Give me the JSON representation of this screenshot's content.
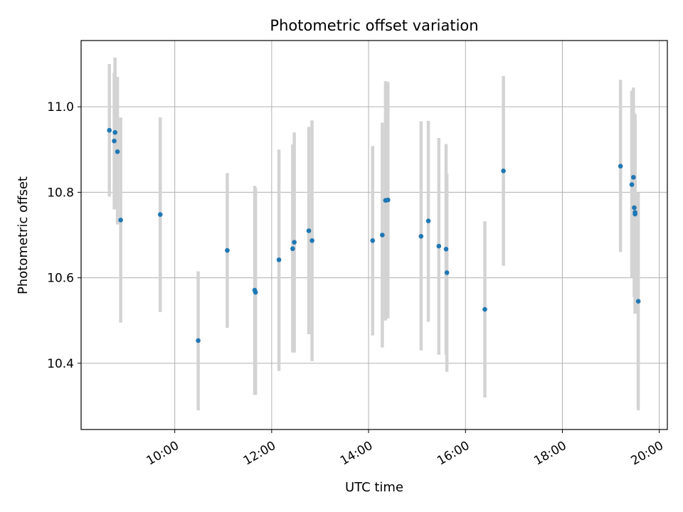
{
  "chart_data": {
    "type": "scatter",
    "title": "Photometric offset variation",
    "xlabel": "UTC time",
    "ylabel": "Photometric offset",
    "x_axis_type": "time",
    "xlim": [
      "08:04",
      "20:10"
    ],
    "ylim": [
      10.245,
      11.155
    ],
    "x_ticks": [
      "10:00",
      "12:00",
      "14:00",
      "16:00",
      "18:00",
      "20:00"
    ],
    "y_ticks": [
      10.4,
      10.6,
      10.8,
      11.0
    ],
    "y_tick_labels": [
      "10.4",
      "10.6",
      "10.8",
      "11.0"
    ],
    "grid": true,
    "series": [
      {
        "marker_color": "#1f77b4",
        "errorbar_color": "#d3d3d3",
        "points": [
          {
            "x": "08:39",
            "y": 10.945,
            "err_low": 10.79,
            "err_high": 11.1
          },
          {
            "x": "08:45",
            "y": 10.92,
            "err_low": 10.76,
            "err_high": 11.08
          },
          {
            "x": "08:46",
            "y": 10.94,
            "err_low": 10.76,
            "err_high": 11.115
          },
          {
            "x": "08:49",
            "y": 10.895,
            "err_low": 10.725,
            "err_high": 11.07
          },
          {
            "x": "08:53",
            "y": 10.735,
            "err_low": 10.495,
            "err_high": 10.975
          },
          {
            "x": "09:42",
            "y": 10.748,
            "err_low": 10.52,
            "err_high": 10.975
          },
          {
            "x": "10:29",
            "y": 10.453,
            "err_low": 10.29,
            "err_high": 10.615
          },
          {
            "x": "11:05",
            "y": 10.664,
            "err_low": 10.483,
            "err_high": 10.845
          },
          {
            "x": "11:39",
            "y": 10.571,
            "err_low": 10.326,
            "err_high": 10.815
          },
          {
            "x": "11:40",
            "y": 10.566,
            "err_low": 10.326,
            "err_high": 10.81
          },
          {
            "x": "12:09",
            "y": 10.642,
            "err_low": 10.382,
            "err_high": 10.9
          },
          {
            "x": "12:26",
            "y": 10.668,
            "err_low": 10.425,
            "err_high": 10.912
          },
          {
            "x": "12:28",
            "y": 10.683,
            "err_low": 10.425,
            "err_high": 10.94
          },
          {
            "x": "12:46",
            "y": 10.71,
            "err_low": 10.468,
            "err_high": 10.953
          },
          {
            "x": "12:50",
            "y": 10.687,
            "err_low": 10.405,
            "err_high": 10.968
          },
          {
            "x": "14:05",
            "y": 10.687,
            "err_low": 10.465,
            "err_high": 10.908
          },
          {
            "x": "14:17",
            "y": 10.7,
            "err_low": 10.437,
            "err_high": 10.963
          },
          {
            "x": "14:21",
            "y": 10.781,
            "err_low": 10.5,
            "err_high": 11.06
          },
          {
            "x": "14:24",
            "y": 10.782,
            "err_low": 10.505,
            "err_high": 11.058
          },
          {
            "x": "15:05",
            "y": 10.697,
            "err_low": 10.43,
            "err_high": 10.966
          },
          {
            "x": "15:14",
            "y": 10.733,
            "err_low": 10.497,
            "err_high": 10.967
          },
          {
            "x": "15:27",
            "y": 10.674,
            "err_low": 10.42,
            "err_high": 10.927
          },
          {
            "x": "15:36",
            "y": 10.667,
            "err_low": 10.42,
            "err_high": 10.913
          },
          {
            "x": "15:37",
            "y": 10.612,
            "err_low": 10.38,
            "err_high": 10.843
          },
          {
            "x": "16:24",
            "y": 10.526,
            "err_low": 10.32,
            "err_high": 10.732
          },
          {
            "x": "16:47",
            "y": 10.85,
            "err_low": 10.628,
            "err_high": 11.072
          },
          {
            "x": "19:12",
            "y": 10.861,
            "err_low": 10.66,
            "err_high": 11.063
          },
          {
            "x": "19:26",
            "y": 10.818,
            "err_low": 10.6,
            "err_high": 11.038
          },
          {
            "x": "19:28",
            "y": 10.835,
            "err_low": 10.625,
            "err_high": 11.045
          },
          {
            "x": "19:29",
            "y": 10.764,
            "err_low": 10.555,
            "err_high": 10.985
          },
          {
            "x": "19:30",
            "y": 10.749,
            "err_low": 10.516,
            "err_high": 10.982
          },
          {
            "x": "19:30",
            "y": 10.753,
            "err_low": 10.516,
            "err_high": 10.975
          },
          {
            "x": "19:34",
            "y": 10.545,
            "err_low": 10.29,
            "err_high": 10.8
          }
        ]
      }
    ]
  }
}
